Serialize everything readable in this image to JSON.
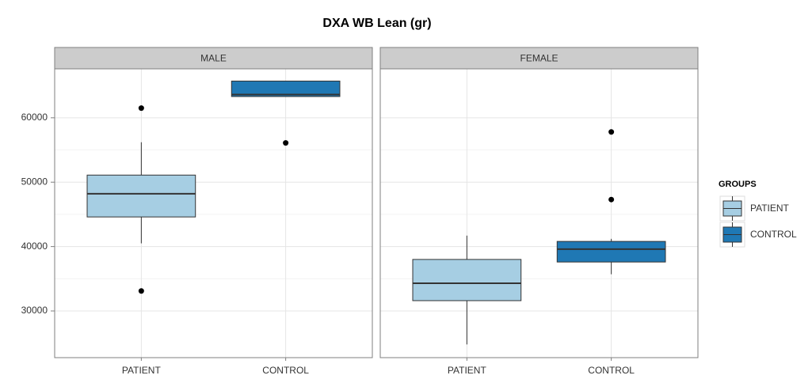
{
  "chart_data": {
    "type": "boxplot",
    "title": "DXA WB Lean (gr)",
    "panels": [
      "MALE",
      "FEMALE"
    ],
    "categories": [
      "PATIENT",
      "CONTROL"
    ],
    "legend_title": "GROUPS",
    "ylim": [
      22750,
      67600
    ],
    "yticks": [
      30000,
      40000,
      50000,
      60000
    ],
    "grid": true,
    "series": [
      {
        "name": "PATIENT",
        "color": "#a6cee3",
        "boxes": [
          {
            "min": 40500,
            "q1": 44600,
            "median": 48200,
            "q3": 51100,
            "max": 56200,
            "outliers": [
              61500,
              33100
            ]
          },
          {
            "min": 24800,
            "q1": 31600,
            "median": 34300,
            "q3": 38000,
            "max": 41700,
            "outliers": []
          }
        ]
      },
      {
        "name": "CONTROL",
        "color": "#1f78b4",
        "boxes": [
          {
            "min": 63300,
            "q1": 63300,
            "median": 63600,
            "q3": 65700,
            "max": 65700,
            "outliers": [
              56100
            ]
          },
          {
            "min": 35700,
            "q1": 37600,
            "median": 39600,
            "q3": 40800,
            "max": 41200,
            "outliers": [
              57800,
              47300
            ]
          }
        ]
      }
    ]
  }
}
